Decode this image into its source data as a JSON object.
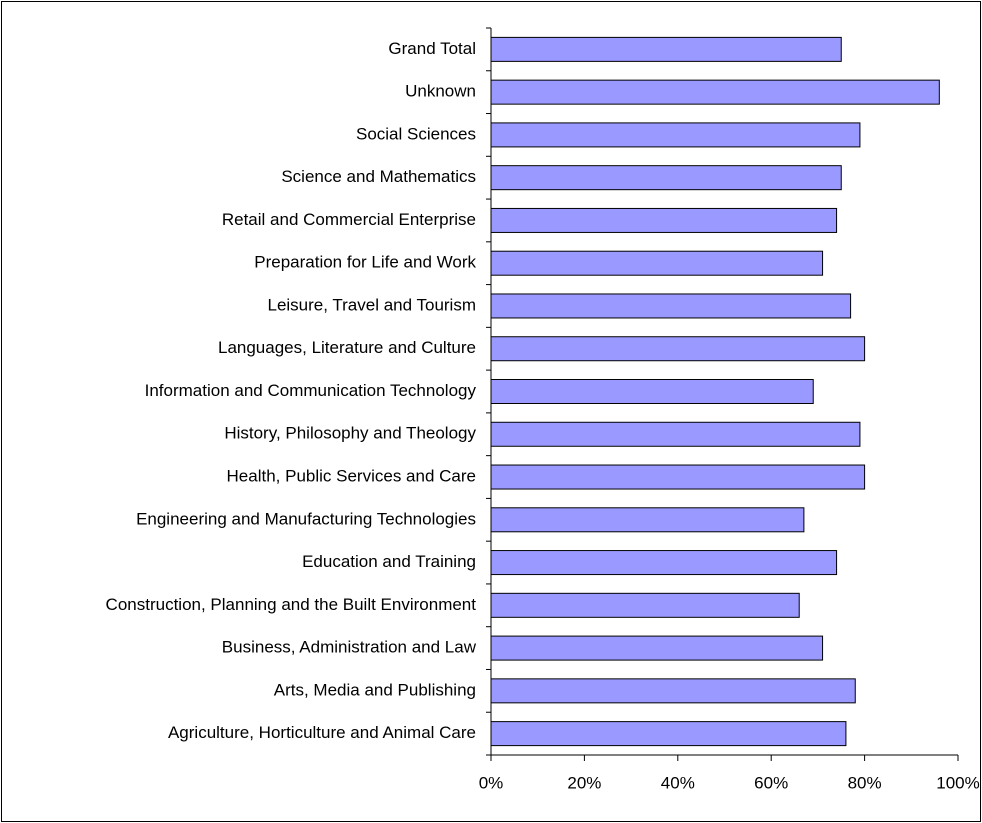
{
  "chart_data": {
    "type": "bar",
    "orientation": "horizontal",
    "color": "#9999ff",
    "categories": [
      "Grand Total",
      "Unknown",
      "Social Sciences",
      "Science and Mathematics",
      "Retail and Commercial Enterprise",
      "Preparation for Life and Work",
      "Leisure, Travel and Tourism",
      "Languages, Literature and Culture",
      "Information and Communication Technology",
      "History, Philosophy and Theology",
      "Health, Public Services and Care",
      "Engineering and Manufacturing Technologies",
      "Education and Training",
      "Construction, Planning and the Built Environment",
      "Business, Administration and Law",
      "Arts, Media and Publishing",
      "Agriculture, Horticulture and Animal Care"
    ],
    "values": [
      75,
      96,
      79,
      75,
      74,
      71,
      77,
      80,
      69,
      79,
      80,
      67,
      74,
      66,
      71,
      78,
      76
    ],
    "xlim": [
      0,
      100
    ],
    "xticks": [
      {
        "value": 0,
        "label": "0%"
      },
      {
        "value": 20,
        "label": "20%"
      },
      {
        "value": 40,
        "label": "40%"
      },
      {
        "value": 60,
        "label": "60%"
      },
      {
        "value": 80,
        "label": "80%"
      },
      {
        "value": 100,
        "label": "100%"
      }
    ],
    "grid": false
  }
}
